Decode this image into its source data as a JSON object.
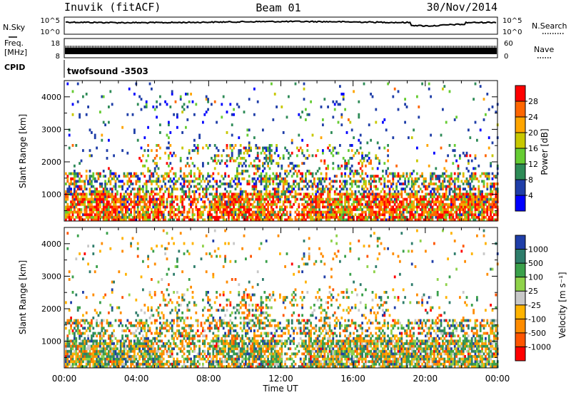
{
  "header": {
    "station": "Inuvik (fitACF)",
    "beam": "Beam 01",
    "date": "30/Nov/2014"
  },
  "noise_panel": {
    "left_label": "N.Sky",
    "right_label": "N.Search",
    "left_ticks": [
      "10^5",
      "10^0"
    ],
    "right_ticks": [
      "10^5",
      "10^0"
    ],
    "scale": "log"
  },
  "freq_panel": {
    "left_label_1": "Freq.",
    "left_label_2": "[MHz]",
    "right_label": "Nave",
    "left_ticks": [
      "18",
      "8"
    ],
    "right_ticks": [
      "60",
      "0"
    ]
  },
  "cpid_panel": {
    "label": "CPID",
    "program": "twofsound -3503"
  },
  "chart_data": [
    {
      "type": "heatmap",
      "title": "",
      "xlabel": "",
      "ylabel": "Slant Range [km]",
      "ylim": [
        180,
        4500
      ],
      "yticks": [
        "1000",
        "2000",
        "3000",
        "4000"
      ],
      "colorbar": {
        "label": "Power [dB]",
        "ticks": [
          "28",
          "24",
          "20",
          "16",
          "12",
          "8",
          "4"
        ],
        "colors": [
          "#ff0000",
          "#ff6600",
          "#ffa500",
          "#c8c800",
          "#66cc33",
          "#2e8b57",
          "#1f3ea8",
          "#0000ff"
        ]
      },
      "bands": [
        {
          "range_km": [
            300,
            1100
          ],
          "level": "strong",
          "description": "continuous near-range echoes 00:00-24:00"
        },
        {
          "range_km": [
            1100,
            2600
          ],
          "level": "moderate",
          "description": "patchy echoes 05:00-18:00"
        },
        {
          "range_km": [
            3000,
            4300
          ],
          "level": "weak",
          "description": "sparse far-range echoes"
        }
      ]
    },
    {
      "type": "heatmap",
      "title": "",
      "xlabel": "Time UT",
      "ylabel": "Slant Range [km]",
      "ylim": [
        180,
        4500
      ],
      "yticks": [
        "1000",
        "2000",
        "3000",
        "4000"
      ],
      "xticks": [
        "00:00",
        "04:00",
        "08:00",
        "12:00",
        "16:00",
        "20:00",
        "00:00"
      ],
      "colorbar": {
        "label": "Velocity [m s⁻¹]",
        "ticks": [
          "1000",
          "500",
          "100",
          "25",
          "-25",
          "-100",
          "-500",
          "-1000"
        ],
        "colors": [
          "#1f3ea8",
          "#2e7d6b",
          "#3aa04a",
          "#8fd24a",
          "#c8c8c8",
          "#ffb300",
          "#ff8c00",
          "#ff5500",
          "#ff0000"
        ]
      },
      "bands": [
        {
          "range_km": [
            300,
            1300
          ],
          "level": "mixed",
          "description": "green/orange near-range echoes"
        },
        {
          "range_km": [
            1300,
            2500
          ],
          "level": "mixed",
          "description": "patchy echoes"
        },
        {
          "range_km": [
            3300,
            4200
          ],
          "level": "sparse",
          "description": "scattered far-range echoes"
        }
      ]
    }
  ]
}
